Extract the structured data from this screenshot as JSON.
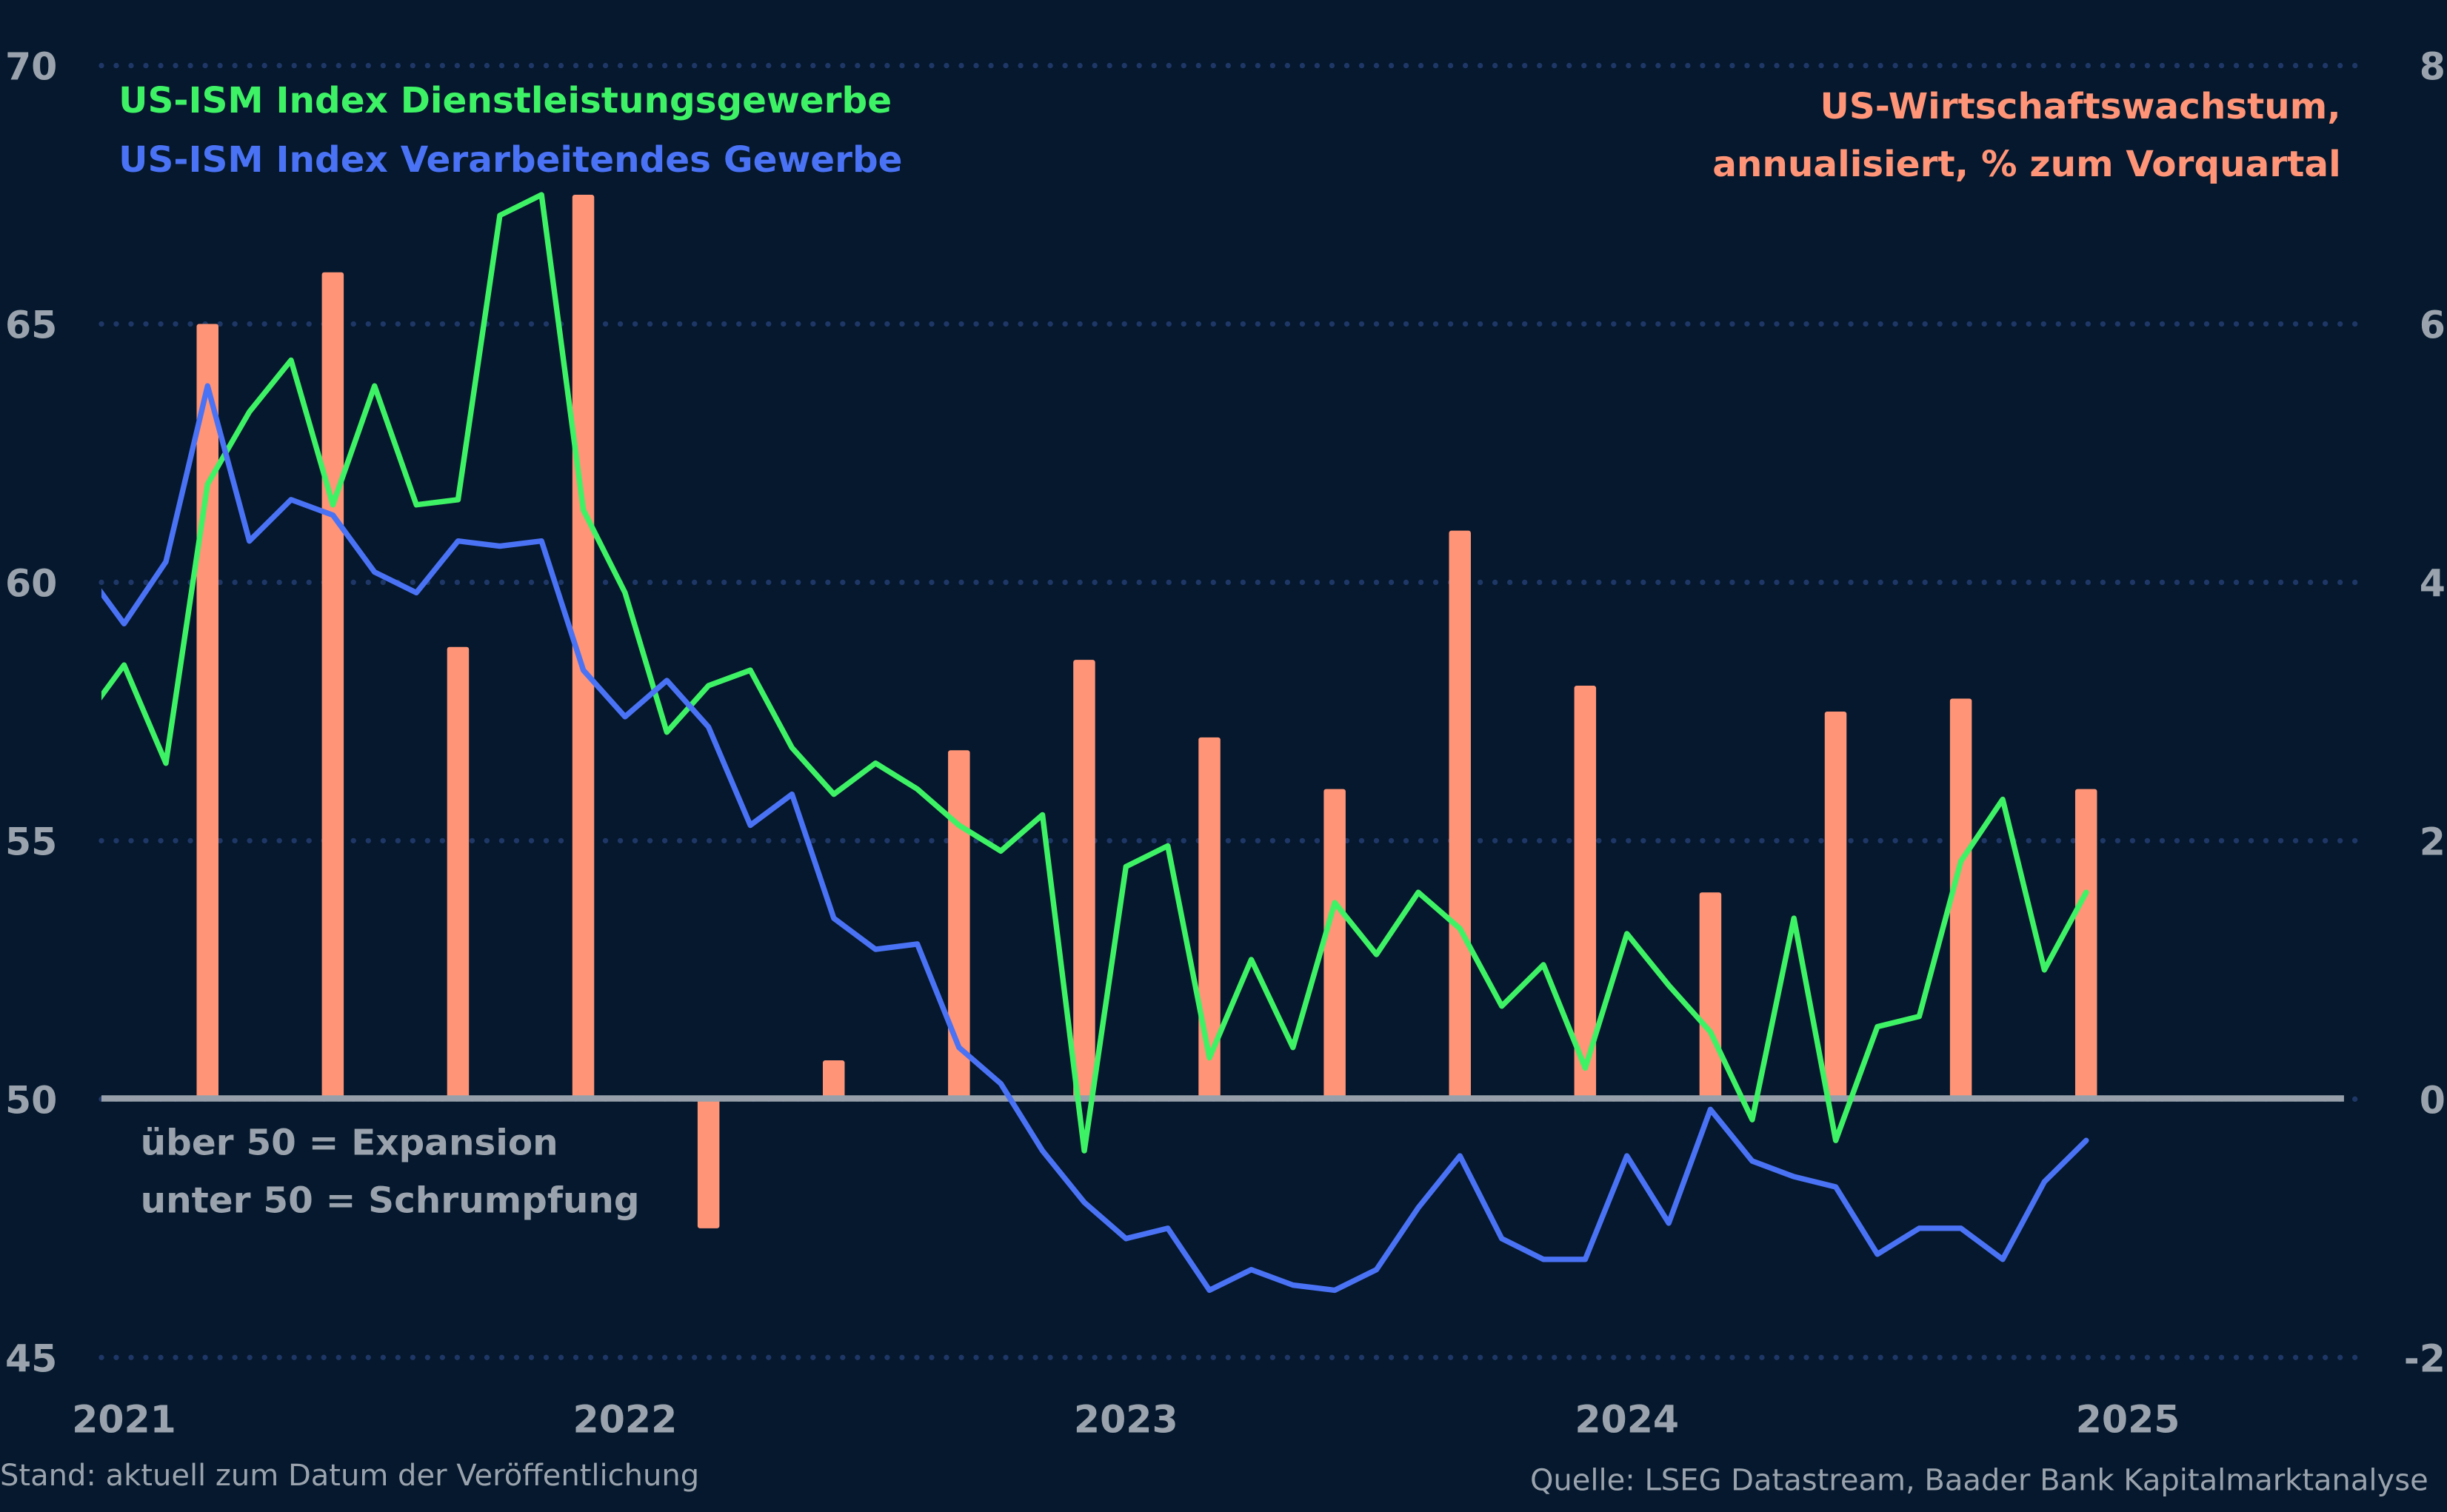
{
  "chart_data": {
    "type": "bar+line",
    "x_start": "2020-12",
    "x_end": "2024-12",
    "x_frequency": "monthly",
    "x_tick_labels": [
      "2021",
      "2022",
      "2023",
      "2024",
      "2025"
    ],
    "y_left": {
      "range": [
        45,
        70
      ],
      "ticks": [
        "45",
        "50",
        "55",
        "60",
        "65",
        "70"
      ]
    },
    "y_right": {
      "range": [
        -2,
        8
      ],
      "ticks": [
        "-2",
        "0",
        "2",
        "4",
        "6",
        "8"
      ]
    },
    "grid": "horizontal dotted",
    "reference_line": 50,
    "series": [
      {
        "name": "US-ISM Index Dienstleistungsgewerbe",
        "axis": "left",
        "color": "#3ef265",
        "values": [
          57.3,
          58.4,
          56.5,
          61.9,
          63.3,
          64.3,
          61.5,
          63.8,
          61.5,
          61.6,
          67.1,
          67.5,
          61.4,
          59.8,
          57.1,
          58.0,
          58.3,
          56.8,
          55.9,
          56.5,
          56.0,
          55.3,
          54.8,
          55.5,
          49.0,
          54.5,
          54.9,
          50.8,
          52.7,
          51.0,
          53.8,
          52.8,
          54.0,
          53.3,
          51.8,
          52.6,
          50.6,
          53.2,
          52.2,
          51.3,
          49.6,
          53.5,
          49.2,
          51.4,
          51.6,
          54.6,
          55.8,
          52.5,
          54.0
        ]
      },
      {
        "name": "US-ISM Index Verarbeitendes Gewerbe",
        "axis": "left",
        "color": "#4a72f5",
        "values": [
          60.3,
          59.2,
          60.4,
          63.8,
          60.8,
          61.6,
          61.3,
          60.2,
          59.8,
          60.8,
          60.7,
          60.8,
          58.3,
          57.4,
          58.1,
          57.2,
          55.3,
          55.9,
          53.5,
          52.9,
          53.0,
          51.0,
          50.3,
          49.0,
          48.0,
          47.3,
          47.5,
          46.3,
          46.7,
          46.4,
          46.3,
          46.7,
          47.9,
          48.9,
          47.3,
          46.9,
          46.9,
          48.9,
          47.6,
          49.8,
          48.8,
          48.5,
          48.3,
          47.0,
          47.5,
          47.5,
          46.9,
          48.4,
          49.2
        ]
      },
      {
        "name": "US-Wirtschaftswachstum, annualisiert, % zum Vorquartal",
        "axis": "right",
        "type": "bar",
        "color": "#ff9477",
        "quarters": [
          "2021-Q1",
          "2021-Q2",
          "2021-Q3",
          "2021-Q4",
          "2022-Q1",
          "2022-Q2",
          "2022-Q3",
          "2022-Q4",
          "2023-Q1",
          "2023-Q2",
          "2023-Q3",
          "2023-Q4",
          "2024-Q1",
          "2024-Q2",
          "2024-Q3",
          "2024-Q4"
        ],
        "values": [
          6.0,
          6.4,
          3.5,
          7.0,
          -1.0,
          0.3,
          2.7,
          3.4,
          2.8,
          2.4,
          4.4,
          3.2,
          1.6,
          3.0,
          3.1,
          2.4
        ]
      }
    ]
  },
  "legend": {
    "services": "US-ISM Index Dienstleistungsgewerbe",
    "manufacturing": "US-ISM Index Verarbeitendes Gewerbe",
    "gdp_line1": "US-Wirtschaftswachstum,",
    "gdp_line2": "annualisiert, % zum Vorquartal"
  },
  "annotation": {
    "line1": "über 50 = Expansion",
    "line2": "unter 50 = Schrumpfung"
  },
  "footer": {
    "left": "Stand: aktuell zum Datum der Veröffentlichung",
    "right": "Quelle: LSEG Datastream, Baader Bank Kapitalmarktanalyse"
  },
  "colors": {
    "background": "#05182d",
    "grid": "#1e3766",
    "zero_line": "#97a0aa",
    "text": "#9aa3ad"
  }
}
